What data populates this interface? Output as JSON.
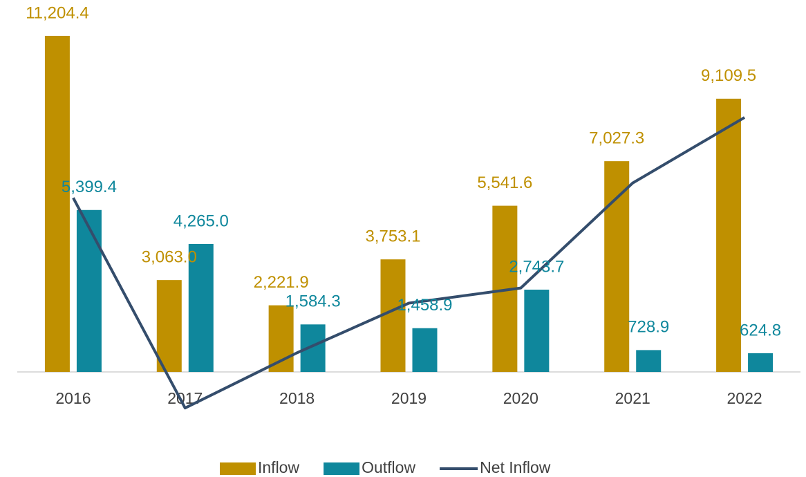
{
  "chart_data": {
    "type": "bar",
    "categories": [
      "2016",
      "2017",
      "2018",
      "2019",
      "2020",
      "2021",
      "2022"
    ],
    "series": [
      {
        "name": "Inflow",
        "type": "bar",
        "color": "#bf9000",
        "values": [
          11204.4,
          3063.0,
          2221.9,
          3753.1,
          5541.6,
          7027.3,
          9109.5
        ],
        "value_labels": [
          "11,204.4",
          "3,063.0",
          "2,221.9",
          "3,753.1",
          "5,541.6",
          "7,027.3",
          "9,109.5"
        ]
      },
      {
        "name": "Outflow",
        "type": "bar",
        "color": "#0f879c",
        "values": [
          5399.4,
          4265.0,
          1584.3,
          1458.9,
          2743.7,
          728.9,
          624.8
        ],
        "value_labels": [
          "5,399.4",
          "4,265.0",
          "1,584.3",
          "1,458.9",
          "2,743.7",
          "728.9",
          "624.8"
        ]
      },
      {
        "name": "Net Inflow",
        "type": "line",
        "color": "#344d6c",
        "values": [
          5805.0,
          -1202.0,
          637.6,
          2294.2,
          2797.9,
          6298.4,
          8484.7
        ]
      }
    ],
    "ylim": [
      -2000,
      12000
    ]
  }
}
